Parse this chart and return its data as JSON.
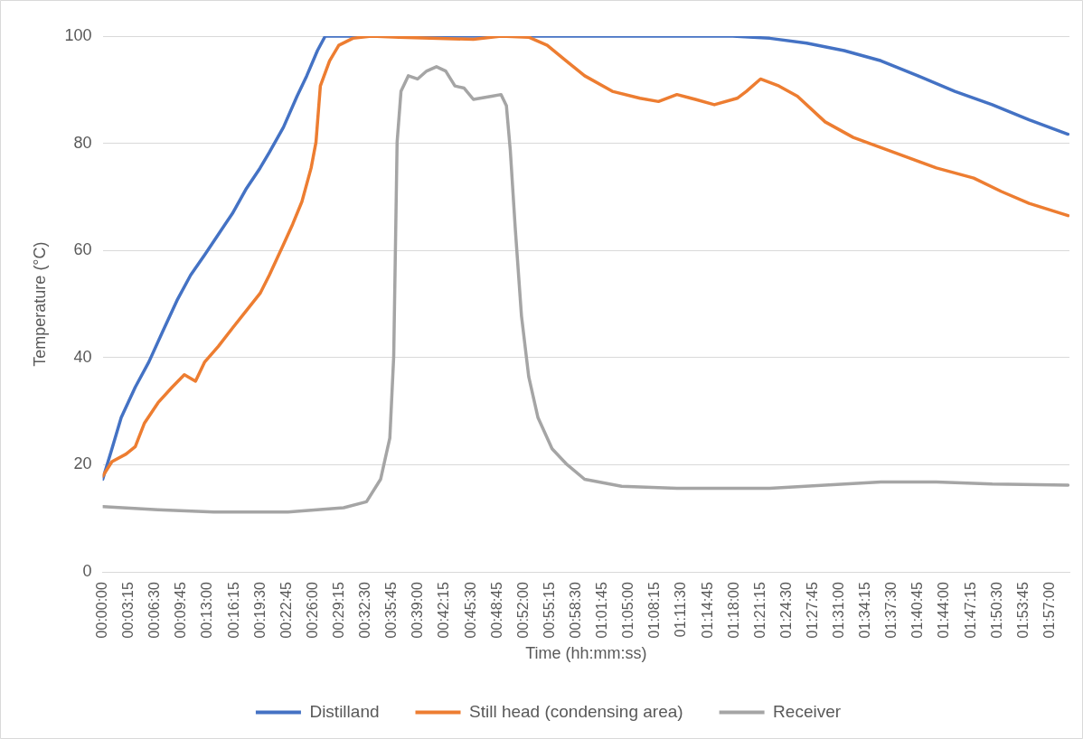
{
  "chart_data": {
    "type": "line",
    "xlabel": "Time (hh:mm:ss)",
    "ylabel": "Temperature (°C)",
    "xlim": [
      0,
      1.99
    ],
    "ylim": [
      0,
      100
    ],
    "yticks": [
      0,
      20,
      40,
      60,
      80,
      100
    ],
    "xticks": [
      {
        "value": 0,
        "label": "00:00:00"
      },
      {
        "value": 0.05417,
        "label": "00:03:15"
      },
      {
        "value": 0.10833,
        "label": "00:06:30"
      },
      {
        "value": 0.1625,
        "label": "00:09:45"
      },
      {
        "value": 0.21667,
        "label": "00:13:00"
      },
      {
        "value": 0.27083,
        "label": "00:16:15"
      },
      {
        "value": 0.325,
        "label": "00:19:30"
      },
      {
        "value": 0.37917,
        "label": "00:22:45"
      },
      {
        "value": 0.43333,
        "label": "00:26:00"
      },
      {
        "value": 0.4875,
        "label": "00:29:15"
      },
      {
        "value": 0.54167,
        "label": "00:32:30"
      },
      {
        "value": 0.59583,
        "label": "00:35:45"
      },
      {
        "value": 0.65,
        "label": "00:39:00"
      },
      {
        "value": 0.70417,
        "label": "00:42:15"
      },
      {
        "value": 0.75833,
        "label": "00:45:30"
      },
      {
        "value": 0.8125,
        "label": "00:48:45"
      },
      {
        "value": 0.86667,
        "label": "00:52:00"
      },
      {
        "value": 0.92083,
        "label": "00:55:15"
      },
      {
        "value": 0.975,
        "label": "00:58:30"
      },
      {
        "value": 1.02917,
        "label": "01:01:45"
      },
      {
        "value": 1.08333,
        "label": "01:05:00"
      },
      {
        "value": 1.1375,
        "label": "01:08:15"
      },
      {
        "value": 1.19167,
        "label": "01:11:30"
      },
      {
        "value": 1.24583,
        "label": "01:14:45"
      },
      {
        "value": 1.3,
        "label": "01:18:00"
      },
      {
        "value": 1.35417,
        "label": "01:21:15"
      },
      {
        "value": 1.40833,
        "label": "01:24:30"
      },
      {
        "value": 1.4625,
        "label": "01:27:45"
      },
      {
        "value": 1.51667,
        "label": "01:31:00"
      },
      {
        "value": 1.57083,
        "label": "01:34:15"
      },
      {
        "value": 1.625,
        "label": "01:37:30"
      },
      {
        "value": 1.67917,
        "label": "01:40:45"
      },
      {
        "value": 1.73333,
        "label": "01:44:00"
      },
      {
        "value": 1.7875,
        "label": "01:47:15"
      },
      {
        "value": 1.84167,
        "label": "01:50:30"
      },
      {
        "value": 1.89583,
        "label": "01:53:45"
      },
      {
        "value": 1.95,
        "label": "01:57:00"
      }
    ],
    "grid": "y",
    "legend": "bottom",
    "marker": "none",
    "line_style": "solid",
    "series": [
      {
        "name": "Distilland",
        "color": "#4472c4",
        "x": [
          0,
          0.019,
          0.038,
          0.067,
          0.095,
          0.124,
          0.153,
          0.181,
          0.21,
          0.238,
          0.267,
          0.296,
          0.324,
          0.343,
          0.372,
          0.4,
          0.42,
          0.442,
          0.458,
          1.297,
          1.373,
          1.449,
          1.526,
          1.602,
          1.678,
          1.754,
          1.831,
          1.907,
          1.987
        ],
        "values": [
          17.3,
          23,
          28.8,
          34.5,
          39.2,
          45,
          50.7,
          55.4,
          59.2,
          63,
          66.9,
          71.6,
          75.4,
          78.3,
          83,
          88.8,
          92.6,
          97.3,
          100,
          100,
          99.6,
          98.7,
          97.3,
          95.4,
          92.6,
          89.7,
          87.2,
          84.4,
          81.7
        ]
      },
      {
        "name": "Still head (condensing area)",
        "color": "#ed7d31",
        "x": [
          0,
          0.019,
          0.048,
          0.067,
          0.086,
          0.114,
          0.143,
          0.168,
          0.191,
          0.21,
          0.238,
          0.267,
          0.296,
          0.324,
          0.343,
          0.372,
          0.391,
          0.41,
          0.429,
          0.439,
          0.448,
          0.467,
          0.486,
          0.515,
          0.553,
          0.61,
          0.763,
          0.82,
          0.877,
          0.915,
          0.954,
          0.992,
          1.049,
          1.106,
          1.144,
          1.182,
          1.22,
          1.259,
          1.306,
          1.325,
          1.354,
          1.392,
          1.43,
          1.487,
          1.545,
          1.602,
          1.659,
          1.716,
          1.793,
          1.85,
          1.907,
          1.987
        ],
        "values": [
          17.9,
          20.6,
          22,
          23.4,
          27.8,
          31.6,
          34.5,
          36.8,
          35.6,
          39.2,
          42.1,
          45.5,
          48.8,
          52,
          55.4,
          61.1,
          64.9,
          69.1,
          75.4,
          80.2,
          90.7,
          95.4,
          98.3,
          99.6,
          100,
          99.8,
          99.4,
          100,
          99.8,
          98.3,
          95.4,
          92.6,
          89.7,
          88.4,
          87.8,
          89.1,
          88.2,
          87.2,
          88.4,
          89.7,
          92,
          90.7,
          88.8,
          84,
          81.1,
          79.2,
          77.3,
          75.4,
          73.5,
          71,
          68.8,
          66.5
        ]
      },
      {
        "name": "Receiver",
        "color": "#a5a5a5",
        "x": [
          0,
          0.114,
          0.229,
          0.381,
          0.496,
          0.543,
          0.572,
          0.591,
          0.599,
          0.603,
          0.606,
          0.614,
          0.629,
          0.648,
          0.667,
          0.687,
          0.706,
          0.725,
          0.744,
          0.763,
          0.801,
          0.82,
          0.831,
          0.839,
          0.849,
          0.862,
          0.877,
          0.896,
          0.925,
          0.954,
          0.992,
          1.068,
          1.182,
          1.373,
          1.487,
          1.602,
          1.716,
          1.831,
          1.987
        ],
        "values": [
          12.2,
          11.6,
          11.2,
          11.2,
          12,
          13.1,
          17.3,
          25,
          40.2,
          63,
          80.2,
          89.7,
          92.6,
          92,
          93.5,
          94.3,
          93.5,
          90.7,
          90.3,
          88.2,
          88.8,
          89.1,
          87,
          78.7,
          64.4,
          47.8,
          36.4,
          28.8,
          23,
          20.2,
          17.3,
          16,
          15.6,
          15.6,
          16.2,
          16.8,
          16.8,
          16.4,
          16.2
        ]
      }
    ]
  }
}
